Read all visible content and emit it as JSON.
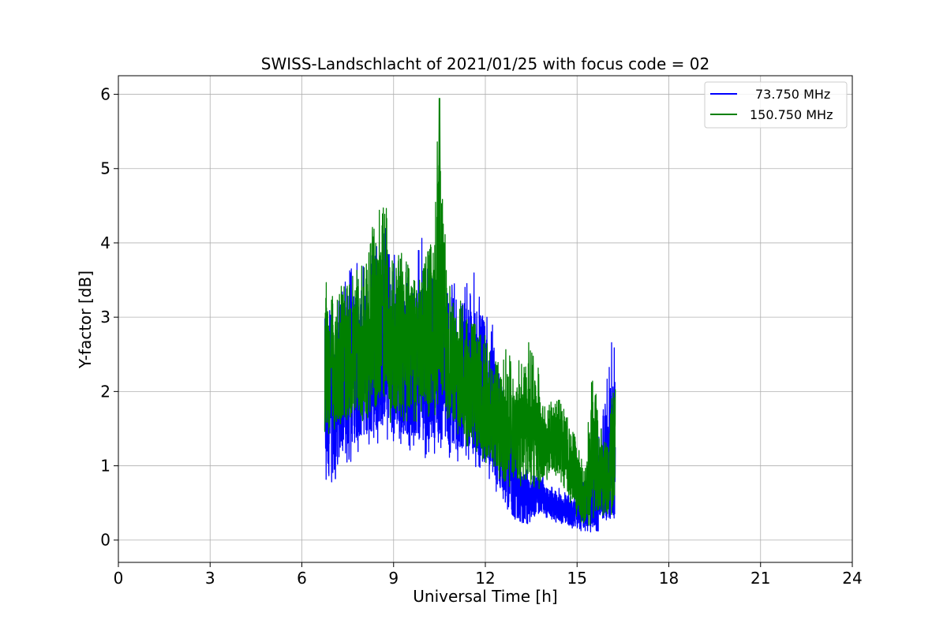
{
  "chart_data": {
    "type": "line",
    "title": "SWISS-Landschlacht of 2021/01/25 with focus code = 02",
    "xlabel": "Universal Time [h]",
    "ylabel": "Y-factor [dB]",
    "xlim": [
      0,
      24
    ],
    "ylim": [
      -0.3,
      6.25
    ],
    "xticks": [
      0,
      3,
      6,
      9,
      12,
      15,
      18,
      21,
      24
    ],
    "xtick_labels": [
      "0",
      "3",
      "6",
      "9",
      "12",
      "15",
      "18",
      "21",
      "24"
    ],
    "yticks": [
      0,
      1,
      2,
      3,
      4,
      5,
      6
    ],
    "ytick_labels": [
      "0",
      "1",
      "2",
      "3",
      "4",
      "5",
      "6"
    ],
    "grid": true,
    "legend_position": "top-right",
    "series": [
      {
        "name": "73.750 MHz",
        "color": "#0000ff",
        "x": [
          6.75,
          7.0,
          7.25,
          7.5,
          7.75,
          8.0,
          8.25,
          8.5,
          8.75,
          9.0,
          9.25,
          9.5,
          9.75,
          10.0,
          10.25,
          10.5,
          10.75,
          11.0,
          11.25,
          11.5,
          11.75,
          12.0,
          12.25,
          12.5,
          12.75,
          13.0,
          13.25,
          13.5,
          13.75,
          14.0,
          14.25,
          14.5,
          14.75,
          15.0,
          15.25,
          15.5,
          15.75,
          16.0,
          16.25
        ],
        "low": [
          0.6,
          0.7,
          0.9,
          1.0,
          1.1,
          1.2,
          1.25,
          1.3,
          1.35,
          1.3,
          1.25,
          1.2,
          1.2,
          1.1,
          1.15,
          1.2,
          1.1,
          1.0,
          1.05,
          1.0,
          0.95,
          0.9,
          0.7,
          0.5,
          0.3,
          0.2,
          0.15,
          0.25,
          0.35,
          0.3,
          0.25,
          0.2,
          0.15,
          0.15,
          0.1,
          0.1,
          0.1,
          0.1,
          0.1
        ],
        "high": [
          3.5,
          3.2,
          3.4,
          3.6,
          3.9,
          3.8,
          3.9,
          4.0,
          4.2,
          3.9,
          3.8,
          3.7,
          4.0,
          4.1,
          3.8,
          3.9,
          3.5,
          3.5,
          3.3,
          3.6,
          3.6,
          3.4,
          3.0,
          2.2,
          1.7,
          1.3,
          1.0,
          0.9,
          1.0,
          0.8,
          0.7,
          0.7,
          0.6,
          0.7,
          0.8,
          1.0,
          1.5,
          2.4,
          2.9
        ]
      },
      {
        "name": "150.750 MHz",
        "color": "#008000",
        "x": [
          6.75,
          7.0,
          7.25,
          7.5,
          7.75,
          8.0,
          8.25,
          8.5,
          8.75,
          9.0,
          9.25,
          9.5,
          9.75,
          10.0,
          10.25,
          10.5,
          10.75,
          11.0,
          11.25,
          11.5,
          11.75,
          12.0,
          12.25,
          12.5,
          12.75,
          13.0,
          13.25,
          13.5,
          13.75,
          14.0,
          14.25,
          14.5,
          14.75,
          15.0,
          15.25,
          15.5,
          15.75,
          16.0,
          16.25
        ],
        "low": [
          1.3,
          1.5,
          1.4,
          1.5,
          1.5,
          1.5,
          1.4,
          1.6,
          1.7,
          1.5,
          1.6,
          1.5,
          1.6,
          1.7,
          1.6,
          1.8,
          1.6,
          1.4,
          1.3,
          1.2,
          1.1,
          1.0,
          0.9,
          0.8,
          0.7,
          0.7,
          0.6,
          0.5,
          0.6,
          0.8,
          0.9,
          0.7,
          0.5,
          0.3,
          0.2,
          0.2,
          0.3,
          0.3,
          0.3
        ],
        "high": [
          3.6,
          3.3,
          3.4,
          3.5,
          3.6,
          3.8,
          4.2,
          4.5,
          4.5,
          3.8,
          3.9,
          3.8,
          4.0,
          3.8,
          4.1,
          5.95,
          3.7,
          3.4,
          3.2,
          3.0,
          2.9,
          2.8,
          2.6,
          2.5,
          2.6,
          2.4,
          2.6,
          2.7,
          2.3,
          1.8,
          1.9,
          2.0,
          1.7,
          1.3,
          1.0,
          2.4,
          1.5,
          1.6,
          2.2
        ]
      }
    ]
  }
}
